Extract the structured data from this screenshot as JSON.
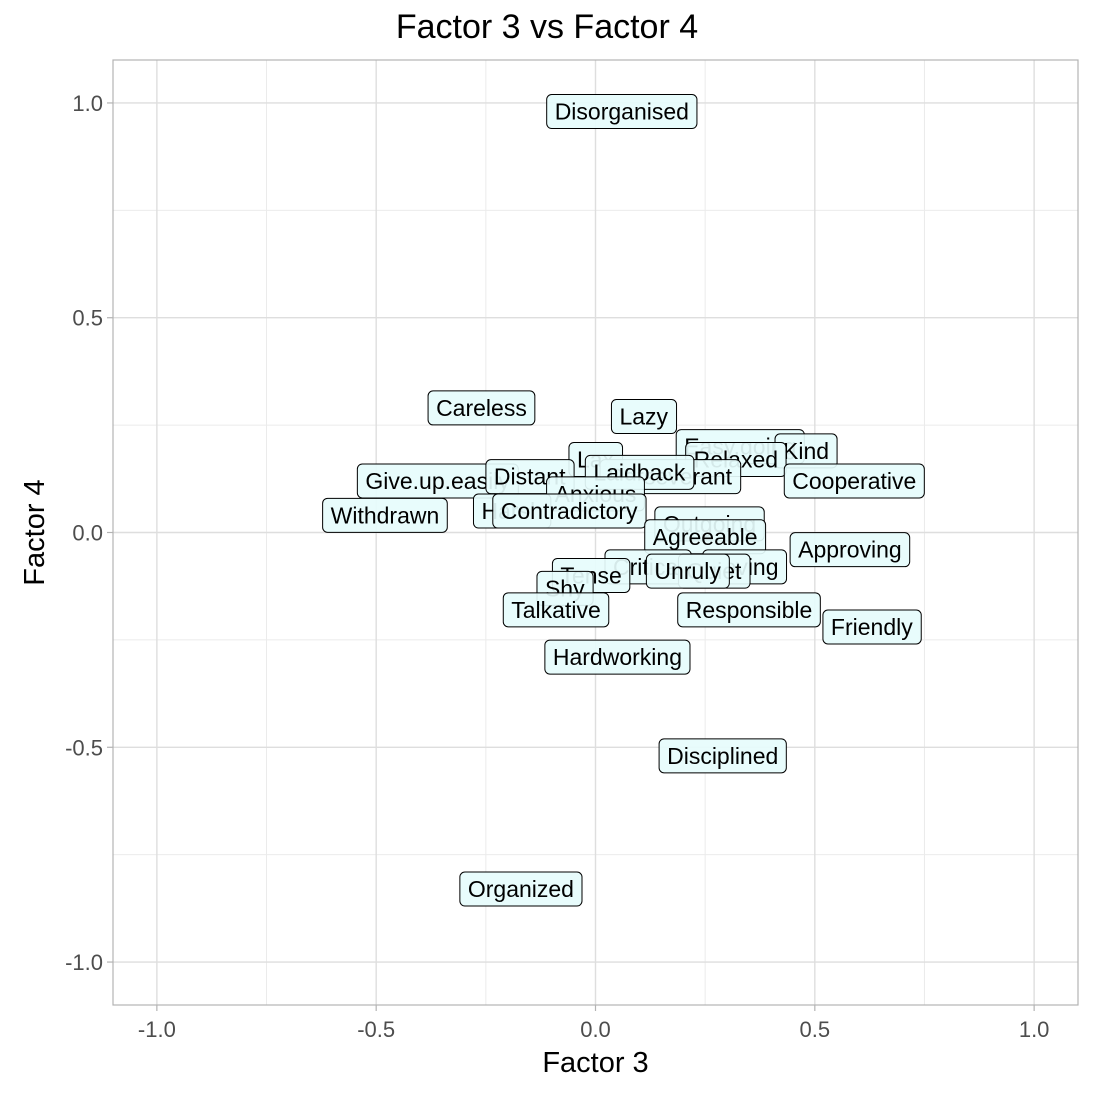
{
  "chart_data": {
    "type": "scatter",
    "title": "Factor 3 vs Factor 4",
    "xlabel": "Factor 3",
    "ylabel": "Factor 4",
    "xlim": [
      -1.1,
      1.1
    ],
    "ylim": [
      -1.1,
      1.1
    ],
    "xticks": [
      -1.0,
      -0.5,
      0.0,
      0.5,
      1.0
    ],
    "xtick_labels": [
      "-1.0",
      "-0.5",
      "0.0",
      "0.5",
      "1.0"
    ],
    "yticks": [
      1.0,
      0.5,
      0.0,
      -0.5,
      -1.0
    ],
    "ytick_labels": [
      "1.0",
      "0.5",
      "0.0",
      "-0.5",
      "-1.0"
    ],
    "grid": true,
    "label_fill": "#e6fcfc",
    "points": [
      {
        "label": "Disorganised",
        "x": 0.06,
        "y": 0.98
      },
      {
        "label": "Careless",
        "x": -0.26,
        "y": 0.29
      },
      {
        "label": "Lazy",
        "x": 0.11,
        "y": 0.27
      },
      {
        "label": "Easy.going",
        "x": 0.33,
        "y": 0.2
      },
      {
        "label": "Kind",
        "x": 0.48,
        "y": 0.19
      },
      {
        "label": "Relaxed",
        "x": 0.32,
        "y": 0.17
      },
      {
        "label": "Lax",
        "x": 0.0,
        "y": 0.17
      },
      {
        "label": "Cooperative",
        "x": 0.59,
        "y": 0.12
      },
      {
        "label": "Give.up.easily",
        "x": -0.36,
        "y": 0.12
      },
      {
        "label": "Distant",
        "x": -0.15,
        "y": 0.13
      },
      {
        "label": "Perseverant",
        "x": 0.17,
        "y": 0.13
      },
      {
        "label": "Laidback",
        "x": 0.1,
        "y": 0.14
      },
      {
        "label": "Anxious",
        "x": 0.0,
        "y": 0.09
      },
      {
        "label": "Harsh",
        "x": -0.19,
        "y": 0.05
      },
      {
        "label": "Contradictory",
        "x": -0.06,
        "y": 0.05
      },
      {
        "label": "Withdrawn",
        "x": -0.48,
        "y": 0.04
      },
      {
        "label": "Outgoing",
        "x": 0.26,
        "y": 0.02
      },
      {
        "label": "Agreeable",
        "x": 0.25,
        "y": -0.01
      },
      {
        "label": "Approving",
        "x": 0.58,
        "y": -0.04
      },
      {
        "label": "Loving",
        "x": 0.34,
        "y": -0.08
      },
      {
        "label": "Critical",
        "x": 0.12,
        "y": -0.08
      },
      {
        "label": "Quiet",
        "x": 0.27,
        "y": -0.09
      },
      {
        "label": "Unruly",
        "x": 0.21,
        "y": -0.09
      },
      {
        "label": "Tense",
        "x": -0.01,
        "y": -0.1
      },
      {
        "label": "Shy",
        "x": -0.07,
        "y": -0.13
      },
      {
        "label": "Talkative",
        "x": -0.09,
        "y": -0.18
      },
      {
        "label": "Responsible",
        "x": 0.35,
        "y": -0.18
      },
      {
        "label": "Friendly",
        "x": 0.63,
        "y": -0.22
      },
      {
        "label": "Hardworking",
        "x": 0.05,
        "y": -0.29
      },
      {
        "label": "Disciplined",
        "x": 0.29,
        "y": -0.52
      },
      {
        "label": "Organized",
        "x": -0.17,
        "y": -0.83
      }
    ]
  }
}
